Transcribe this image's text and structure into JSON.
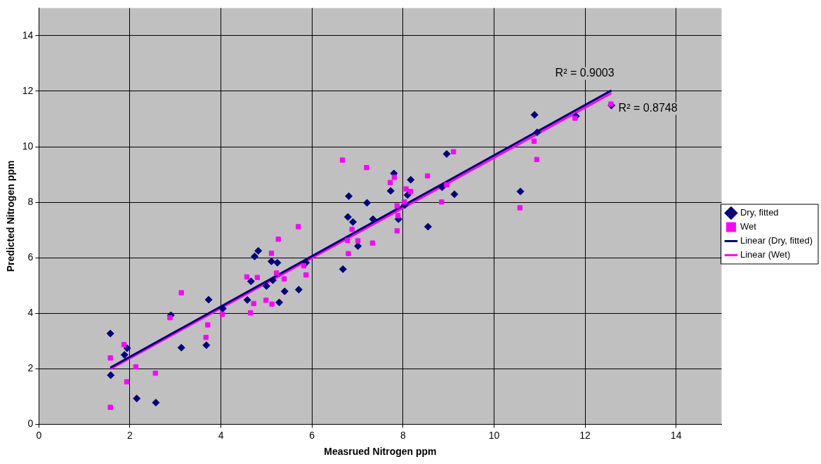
{
  "chart_data": {
    "type": "scatter",
    "xlabel": "Measrued Nitrogen ppm",
    "ylabel": "Predicted Nitrogen ppm",
    "xlim": [
      0,
      15
    ],
    "ylim": [
      0,
      15
    ],
    "xticks": [
      0,
      2,
      4,
      6,
      8,
      10,
      12,
      14
    ],
    "yticks": [
      0,
      2,
      4,
      6,
      8,
      10,
      12,
      14
    ],
    "grid": true,
    "legend": "right",
    "series": [
      {
        "name": "Dry, fitted",
        "color": "#000080",
        "type": "scatter",
        "marker": "diamond",
        "x": [
          1.57,
          1.58,
          1.88,
          1.94,
          2.15,
          2.57,
          2.9,
          3.13,
          3.68,
          3.73,
          4.04,
          4.58,
          4.66,
          5.0,
          5.14,
          5.4,
          5.28,
          5.71,
          4.82,
          4.74,
          5.11,
          5.24,
          5.87,
          6.68,
          6.79,
          6.9,
          6.81,
          7.01,
          7.21,
          7.34,
          7.73,
          8.17,
          8.1,
          7.9,
          8.04,
          8.55,
          8.96,
          7.8,
          8.86,
          9.13,
          10.58,
          10.89,
          10.95,
          11.8,
          12.58
        ],
        "values": [
          3.27,
          1.77,
          2.5,
          2.74,
          0.93,
          0.78,
          3.93,
          2.76,
          2.85,
          4.49,
          4.17,
          4.48,
          5.15,
          4.98,
          5.19,
          4.79,
          4.39,
          4.85,
          6.25,
          6.05,
          5.87,
          5.82,
          5.82,
          5.59,
          7.47,
          7.29,
          8.22,
          6.42,
          7.98,
          7.39,
          8.41,
          8.81,
          8.26,
          7.39,
          7.9,
          7.12,
          9.74,
          9.04,
          8.54,
          8.29,
          8.39,
          11.15,
          10.52,
          11.1,
          11.49
        ]
      },
      {
        "name": "Wet",
        "color": "#ff00ff",
        "type": "scatter",
        "marker": "square",
        "x": [
          1.57,
          1.87,
          2.13,
          1.93,
          1.57,
          2.56,
          2.88,
          3.13,
          3.71,
          3.67,
          4.03,
          4.57,
          4.8,
          4.72,
          4.65,
          4.99,
          5.12,
          5.39,
          5.22,
          5.87,
          5.11,
          5.26,
          5.7,
          5.82,
          6.78,
          6.8,
          6.88,
          7.01,
          7.33,
          7.87,
          7.89,
          7.87,
          8.03,
          7.72,
          8.07,
          8.17,
          8.85,
          6.67,
          7.2,
          7.81,
          9.11,
          8.54,
          8.96,
          10.57,
          10.88,
          10.94,
          11.78,
          12.57
        ],
        "values": [
          2.39,
          2.87,
          2.07,
          1.53,
          0.61,
          1.84,
          3.84,
          4.74,
          3.58,
          3.13,
          3.96,
          5.31,
          5.29,
          4.35,
          4.02,
          4.47,
          4.33,
          5.24,
          5.45,
          5.38,
          6.16,
          6.67,
          7.12,
          5.71,
          6.63,
          6.15,
          7.02,
          6.61,
          6.53,
          6.97,
          7.52,
          7.87,
          8.01,
          8.71,
          8.48,
          8.39,
          8.01,
          9.52,
          9.25,
          8.9,
          9.82,
          8.95,
          8.63,
          7.8,
          10.2,
          9.54,
          11.03,
          11.54
        ]
      },
      {
        "name": "Linear (Dry, fitted)",
        "color": "#000080",
        "type": "line",
        "marker": "none",
        "line_style": "solid",
        "x": [
          1.57,
          12.58
        ],
        "values": [
          2.04,
          12.03
        ]
      },
      {
        "name": "Linear (Wet)",
        "color": "#ff00ff",
        "type": "line",
        "marker": "none",
        "line_style": "solid",
        "x": [
          1.57,
          12.58
        ],
        "values": [
          1.99,
          11.93
        ]
      }
    ],
    "annotations": [
      "R² = 0.9003",
      "R² = 0.8748"
    ]
  }
}
